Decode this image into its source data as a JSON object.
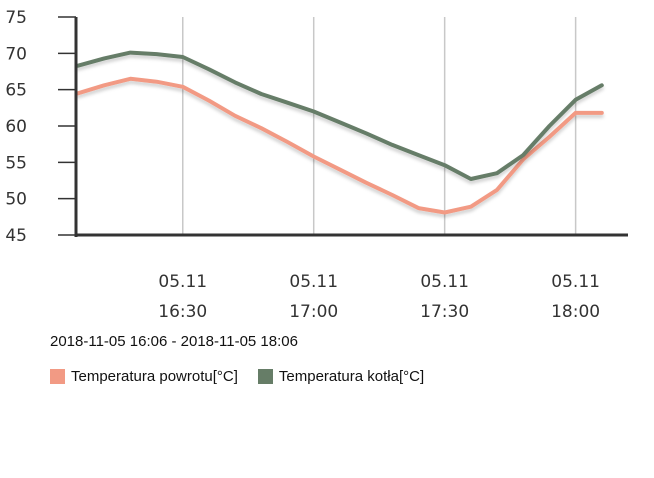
{
  "chart_data": {
    "type": "line",
    "x": [
      "16:06",
      "16:12",
      "16:18",
      "16:24",
      "16:30",
      "16:36",
      "16:42",
      "16:48",
      "16:54",
      "17:00",
      "17:06",
      "17:12",
      "17:18",
      "17:24",
      "17:30",
      "17:36",
      "17:42",
      "17:48",
      "17:54",
      "18:00",
      "18:06"
    ],
    "x_ticks": [
      {
        "x": "16:30",
        "date": "05.11",
        "time": "16:30"
      },
      {
        "x": "17:00",
        "date": "05.11",
        "time": "17:00"
      },
      {
        "x": "17:30",
        "date": "05.11",
        "time": "17:30"
      },
      {
        "x": "18:00",
        "date": "05.11",
        "time": "18:00"
      }
    ],
    "y_ticks": [
      45,
      50,
      55,
      60,
      65,
      70,
      75
    ],
    "ylim": [
      45,
      75
    ],
    "grid": "vertical",
    "legend_position": "bottom-left",
    "series": [
      {
        "name": "Temperatura powrotu[°C]",
        "color": "#f29a84",
        "values": [
          64.5,
          65.6,
          66.5,
          66.1,
          65.4,
          63.5,
          61.4,
          59.7,
          57.8,
          55.8,
          54.0,
          52.2,
          50.5,
          48.7,
          48.1,
          48.9,
          51.2,
          55.4,
          58.5,
          61.8,
          61.8
        ]
      },
      {
        "name": "Temperatura kotła[°C]",
        "color": "#667d67",
        "values": [
          68.3,
          69.3,
          70.1,
          69.9,
          69.5,
          67.8,
          66.0,
          64.4,
          63.2,
          62.0,
          60.5,
          59.0,
          57.4,
          56.0,
          54.6,
          52.7,
          53.5,
          56.0,
          60.0,
          63.6,
          65.6
        ]
      }
    ]
  },
  "range_label": "2018-11-05 16:06 - 2018-11-05 18:06"
}
